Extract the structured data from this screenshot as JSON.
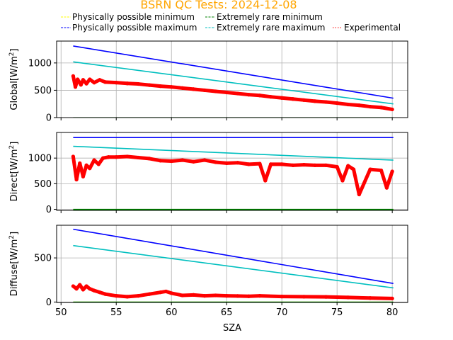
{
  "chart_data": {
    "type": "line",
    "title": "BSRN QC Tests: 2024-12-08",
    "xlabel": "SZA",
    "xlim": [
      49.6,
      81.4
    ],
    "xticks": [
      50,
      55,
      60,
      65,
      70,
      75,
      80
    ],
    "grid": true,
    "legend": {
      "placement": "top",
      "entries": [
        {
          "name": "Physically possible minimum",
          "color": "#ffff00",
          "style": "dashed"
        },
        {
          "name": "Extremely rare minimum",
          "color": "#008000",
          "style": "dashed"
        },
        {
          "name": "Physically possible maximum",
          "color": "#0000ff",
          "style": "dashed"
        },
        {
          "name": "Extremely rare maximum",
          "color": "#00bfbf",
          "style": "dashed"
        },
        {
          "name": "Experimental",
          "color": "#ff0000",
          "style": "dotted"
        }
      ]
    },
    "panels": [
      {
        "ylabel": "Global",
        "yunit": "W/m",
        "ylim": [
          0,
          1400
        ],
        "yticks": [
          0,
          500,
          1000
        ],
        "series": [
          {
            "name": "Physically possible minimum",
            "color": "#ffff00",
            "x": [
              51.1,
              80.1
            ],
            "y": [
              -4,
              -4
            ]
          },
          {
            "name": "Extremely rare minimum",
            "color": "#008000",
            "x": [
              51.1,
              80.1
            ],
            "y": [
              -2,
              -2
            ]
          },
          {
            "name": "Physically possible maximum",
            "color": "#0000ff",
            "x": [
              51.1,
              80.1
            ],
            "y": [
              1310,
              355
            ]
          },
          {
            "name": "Extremely rare maximum",
            "color": "#00bfbf",
            "x": [
              51.1,
              80.1
            ],
            "y": [
              1020,
              250
            ]
          },
          {
            "name": "Experimental",
            "color": "#ff0000",
            "x": [
              51.1,
              51.3,
              51.5,
              51.8,
              52.0,
              52.3,
              52.6,
              53.0,
              53.5,
              54.0,
              55.0,
              56.0,
              57.0,
              58.0,
              59.0,
              60.0,
              61.0,
              62.0,
              63.0,
              64.0,
              65.0,
              66.0,
              67.0,
              68.0,
              69.0,
              70.0,
              71.0,
              72.0,
              73.0,
              74.0,
              75.0,
              76.0,
              77.0,
              78.0,
              79.0,
              80.0
            ],
            "y": [
              760,
              560,
              700,
              600,
              690,
              620,
              700,
              640,
              690,
              650,
              640,
              625,
              615,
              595,
              575,
              560,
              540,
              520,
              500,
              480,
              460,
              440,
              420,
              405,
              380,
              360,
              340,
              320,
              300,
              285,
              265,
              240,
              225,
              200,
              185,
              150
            ]
          }
        ]
      },
      {
        "ylabel": "Direct",
        "yunit": "W/m",
        "ylim": [
          -20,
          1500
        ],
        "yticks": [
          0,
          500,
          1000
        ],
        "series": [
          {
            "name": "Physically possible minimum",
            "color": "#ffff00",
            "x": [
              51.1,
              80.1
            ],
            "y": [
              -4,
              -4
            ]
          },
          {
            "name": "Extremely rare minimum",
            "color": "#008000",
            "x": [
              51.1,
              80.1
            ],
            "y": [
              -2,
              -2
            ]
          },
          {
            "name": "Physically possible maximum",
            "color": "#0000ff",
            "x": [
              51.1,
              80.1
            ],
            "y": [
              1400,
              1400
            ]
          },
          {
            "name": "Extremely rare maximum",
            "color": "#00bfbf",
            "x": [
              51.1,
              80.1
            ],
            "y": [
              1230,
              960
            ]
          },
          {
            "name": "Experimental",
            "color": "#ff0000",
            "x": [
              51.1,
              51.4,
              51.7,
              52.0,
              52.3,
              52.6,
              53.0,
              53.4,
              53.8,
              54.3,
              55.0,
              56.0,
              57.0,
              58.0,
              59.0,
              60.0,
              61.0,
              62.0,
              63.0,
              64.0,
              65.0,
              66.0,
              67.0,
              68.0,
              68.5,
              69.0,
              70.0,
              71.0,
              72.0,
              73.0,
              74.0,
              75.0,
              75.5,
              76.0,
              76.5,
              77.0,
              78.0,
              79.0,
              79.5,
              80.0
            ],
            "y": [
              1030,
              580,
              900,
              640,
              860,
              800,
              960,
              880,
              1000,
              1020,
              1020,
              1030,
              1010,
              990,
              950,
              940,
              960,
              930,
              960,
              920,
              900,
              910,
              880,
              890,
              560,
              880,
              880,
              860,
              870,
              860,
              860,
              830,
              560,
              850,
              780,
              290,
              780,
              760,
              420,
              740
            ]
          }
        ]
      },
      {
        "ylabel": "Diffuse",
        "yunit": "W/m",
        "ylim": [
          -5,
          870
        ],
        "yticks": [
          0,
          500
        ],
        "series": [
          {
            "name": "Physically possible minimum",
            "color": "#ffff00",
            "x": [
              51.1,
              80.1
            ],
            "y": [
              -2,
              -2
            ]
          },
          {
            "name": "Extremely rare minimum",
            "color": "#008000",
            "x": [
              51.1,
              80.1
            ],
            "y": [
              -1,
              -1
            ]
          },
          {
            "name": "Physically possible maximum",
            "color": "#0000ff",
            "x": [
              51.1,
              80.1
            ],
            "y": [
              825,
              210
            ]
          },
          {
            "name": "Extremely rare maximum",
            "color": "#00bfbf",
            "x": [
              51.1,
              80.1
            ],
            "y": [
              640,
              160
            ]
          },
          {
            "name": "Experimental",
            "color": "#ff0000",
            "x": [
              51.1,
              51.4,
              51.7,
              52.0,
              52.3,
              52.6,
              53.0,
              53.5,
              54.0,
              55.0,
              56.0,
              57.0,
              58.0,
              59.0,
              59.5,
              60.0,
              61.0,
              62.0,
              63.0,
              64.0,
              65.0,
              66.0,
              67.0,
              68.0,
              70.0,
              72.0,
              74.0,
              76.0,
              78.0,
              80.0
            ],
            "y": [
              180,
              150,
              195,
              140,
              180,
              150,
              130,
              110,
              90,
              70,
              60,
              70,
              90,
              110,
              120,
              100,
              75,
              80,
              70,
              75,
              70,
              68,
              65,
              70,
              62,
              60,
              58,
              52,
              45,
              40
            ]
          }
        ]
      }
    ]
  }
}
